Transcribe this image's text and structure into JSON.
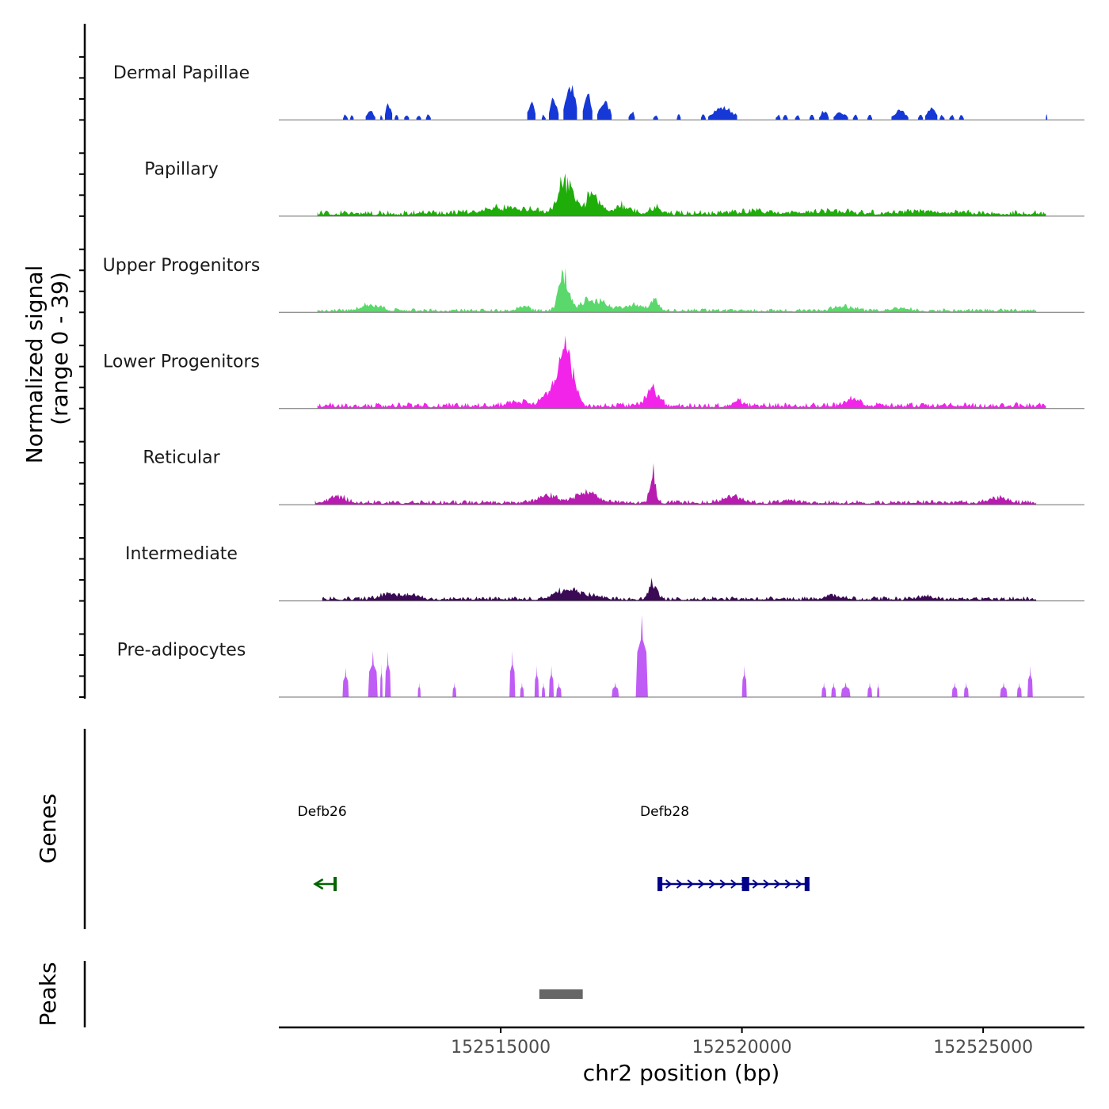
{
  "chart_data": {
    "type": "area",
    "chromosome": "chr2",
    "xlim": [
      152510400,
      152527100
    ],
    "xlabel": "chr2 position (bp)",
    "x_ticks": [
      152515000,
      152520000,
      152525000
    ],
    "x_tick_labels": [
      "152515000",
      "152520000",
      "152525000"
    ],
    "ylabel_line1": "Normalized signal",
    "ylabel_line2": "(range 0 - 39)",
    "ylim": [
      0,
      39
    ],
    "series": [
      {
        "name": "Dermal Papillae",
        "color": "#1538d6",
        "style": "sparse",
        "regions": [
          [
            152511730,
            152511830,
            3
          ],
          [
            152511880,
            152511950,
            3
          ],
          [
            152512200,
            152512400,
            5
          ],
          [
            152512500,
            152512550,
            3
          ],
          [
            152512600,
            152512750,
            9
          ],
          [
            152512800,
            152512880,
            3
          ],
          [
            152513000,
            152513100,
            3
          ],
          [
            152513250,
            152513350,
            3
          ],
          [
            152513450,
            152513550,
            3
          ],
          [
            152515550,
            152515720,
            11
          ],
          [
            152515850,
            152515930,
            3
          ],
          [
            152516000,
            152516200,
            12
          ],
          [
            152516300,
            152516580,
            19
          ],
          [
            152516700,
            152516900,
            14
          ],
          [
            152517000,
            152517300,
            10
          ],
          [
            152517650,
            152517780,
            5
          ],
          [
            152518160,
            152518260,
            3
          ],
          [
            152518650,
            152518730,
            3
          ],
          [
            152519150,
            152519250,
            3
          ],
          [
            152519300,
            152519900,
            7
          ],
          [
            152520700,
            152520800,
            3
          ],
          [
            152520850,
            152520950,
            3
          ],
          [
            152521100,
            152521200,
            3
          ],
          [
            152521400,
            152521500,
            3
          ],
          [
            152521600,
            152521800,
            5
          ],
          [
            152521900,
            152522200,
            4
          ],
          [
            152522300,
            152522400,
            3
          ],
          [
            152522600,
            152522700,
            3
          ],
          [
            152523100,
            152523450,
            5
          ],
          [
            152523650,
            152523750,
            3
          ],
          [
            152523800,
            152524050,
            7
          ],
          [
            152524100,
            152524200,
            3
          ],
          [
            152524300,
            152524400,
            3
          ],
          [
            152524500,
            152524600,
            3
          ],
          [
            152526300,
            152526330,
            3
          ]
        ]
      },
      {
        "name": "Papillary",
        "color": "#1fad0a",
        "style": "dense",
        "range": [
          152511200,
          152526300
        ],
        "base": 2.2,
        "peaks": [
          [
            152515150,
            700,
            3
          ],
          [
            152516300,
            180,
            16
          ],
          [
            152516500,
            120,
            7
          ],
          [
            152516900,
            200,
            10
          ],
          [
            152517500,
            250,
            4
          ],
          [
            152518200,
            150,
            4
          ],
          [
            152520300,
            600,
            1
          ],
          [
            152521800,
            600,
            1
          ],
          [
            152524000,
            800,
            1
          ]
        ]
      },
      {
        "name": "Upper Progenitors",
        "color": "#5bd86b",
        "style": "dense",
        "range": [
          152511200,
          152526100
        ],
        "base": 1.4,
        "peaks": [
          [
            152512300,
            300,
            3
          ],
          [
            152515450,
            150,
            3
          ],
          [
            152516300,
            140,
            19
          ],
          [
            152516900,
            350,
            6
          ],
          [
            152517800,
            300,
            3
          ],
          [
            152518200,
            120,
            5
          ],
          [
            152522100,
            300,
            2.5
          ],
          [
            152523300,
            300,
            1.5
          ]
        ]
      },
      {
        "name": "Lower Progenitors",
        "color": "#f224ea",
        "style": "dense",
        "range": [
          152511200,
          152526300
        ],
        "base": 2.2,
        "peaks": [
          [
            152515350,
            250,
            2.5
          ],
          [
            152516150,
            280,
            12
          ],
          [
            152516320,
            120,
            24
          ],
          [
            152516500,
            130,
            16
          ],
          [
            152518150,
            180,
            10
          ],
          [
            152519900,
            120,
            4
          ],
          [
            152522300,
            200,
            4
          ]
        ]
      },
      {
        "name": "Reticular",
        "color": "#b81bb0",
        "style": "dense",
        "range": [
          152511150,
          152526100
        ],
        "base": 1.7,
        "peaks": [
          [
            152511600,
            220,
            4
          ],
          [
            152516000,
            280,
            4
          ],
          [
            152516800,
            300,
            6
          ],
          [
            152518150,
            80,
            18
          ],
          [
            152519800,
            300,
            3
          ],
          [
            152521000,
            200,
            2
          ],
          [
            152525300,
            250,
            3
          ]
        ]
      },
      {
        "name": "Intermediate",
        "color": "#3b0a55",
        "style": "dense",
        "range": [
          152511300,
          152526100
        ],
        "base": 1.6,
        "peaks": [
          [
            152512700,
            300,
            3
          ],
          [
            152513200,
            200,
            2
          ],
          [
            152516300,
            300,
            4
          ],
          [
            152516700,
            350,
            3
          ],
          [
            152518150,
            110,
            9
          ],
          [
            152521900,
            250,
            2
          ],
          [
            152523800,
            200,
            1.5
          ]
        ]
      },
      {
        "name": "Pre-adipocytes",
        "color": "#c05cf6",
        "style": "spiky",
        "regions": [
          [
            152511720,
            152511850,
            14
          ],
          [
            152512250,
            152512450,
            22
          ],
          [
            152512500,
            152512550,
            16
          ],
          [
            152512600,
            152512720,
            22
          ],
          [
            152513280,
            152513340,
            7
          ],
          [
            152514000,
            152514080,
            7
          ],
          [
            152515180,
            152515300,
            22
          ],
          [
            152515400,
            152515480,
            7
          ],
          [
            152515700,
            152515790,
            15
          ],
          [
            152515850,
            152515920,
            7
          ],
          [
            152516000,
            152516100,
            15
          ],
          [
            152516150,
            152516260,
            7
          ],
          [
            152517300,
            152517450,
            7
          ],
          [
            152517800,
            152518050,
            39
          ],
          [
            152520000,
            152520100,
            15
          ],
          [
            152521650,
            152521750,
            7
          ],
          [
            152521850,
            152521950,
            7
          ],
          [
            152522050,
            152522250,
            7
          ],
          [
            152522600,
            152522700,
            7
          ],
          [
            152522800,
            152522850,
            7
          ],
          [
            152524350,
            152524470,
            7
          ],
          [
            152524600,
            152524700,
            7
          ],
          [
            152525350,
            152525500,
            7
          ],
          [
            152525700,
            152525800,
            7
          ],
          [
            152525920,
            152526030,
            15
          ]
        ]
      }
    ],
    "genes": [
      {
        "name": "Defb26",
        "strand": "-",
        "start": 152511150,
        "end": 152511600,
        "color": "#006400"
      },
      {
        "name": "Defb28",
        "strand": "+",
        "start": 152518250,
        "end": 152521400,
        "color": "#00008b",
        "exons": [
          [
            152518250,
            152518350
          ],
          [
            152520000,
            152520150
          ],
          [
            152521300,
            152521400
          ]
        ]
      }
    ],
    "peaks": [
      {
        "start": 152515800,
        "end": 152516700
      }
    ],
    "track_labels_side": {
      "genes": "Genes",
      "peaks": "Peaks"
    }
  }
}
